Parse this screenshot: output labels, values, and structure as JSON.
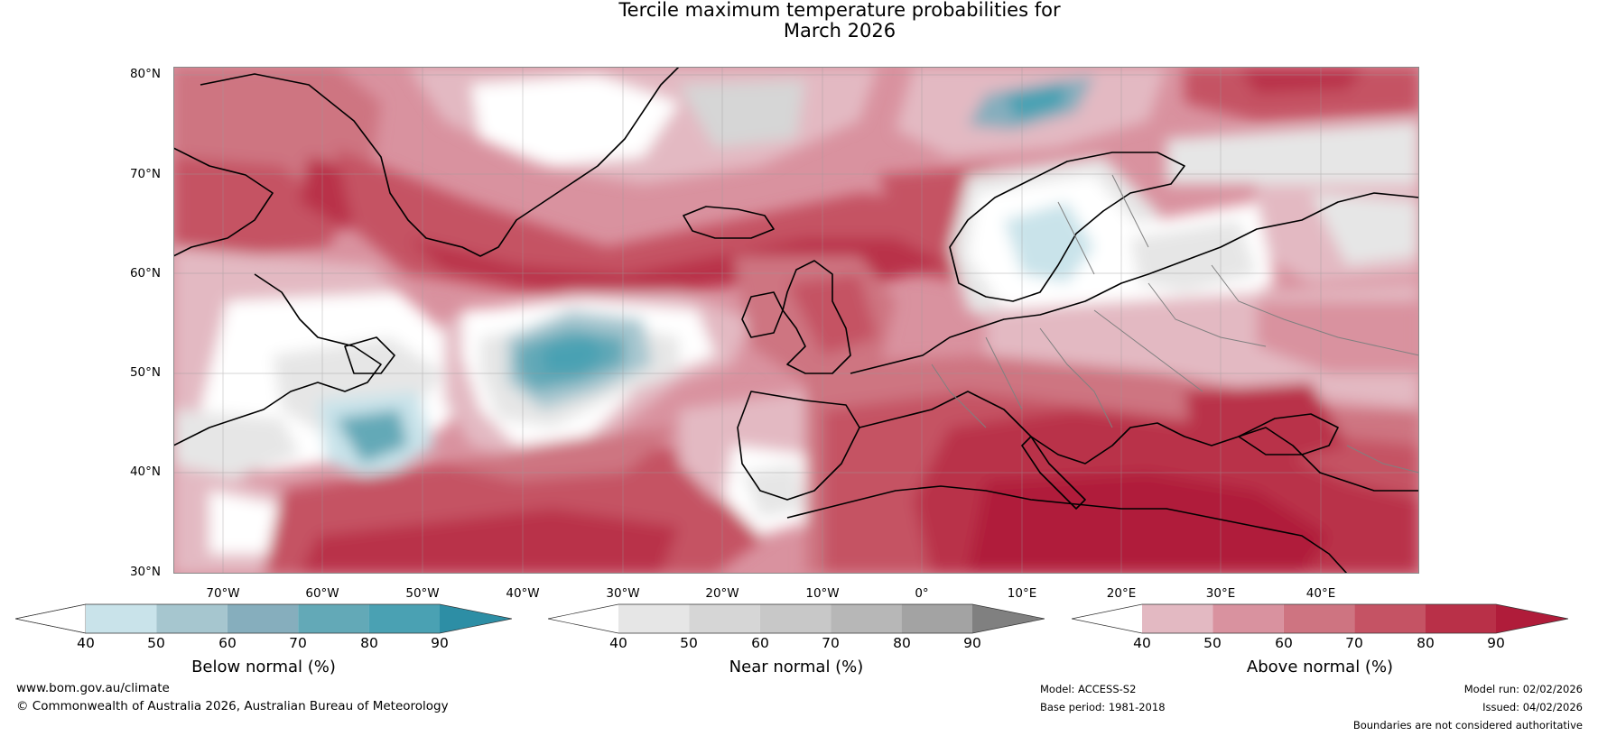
{
  "title": {
    "line1": "Tercile maximum temperature probabilities for",
    "line2": "March 2026"
  },
  "map": {
    "lat_labels": [
      "80°N",
      "70°N",
      "60°N",
      "50°N",
      "40°N",
      "30°N"
    ],
    "lon_labels": [
      "70°W",
      "60°W",
      "50°W",
      "40°W",
      "30°W",
      "20°W",
      "10°W",
      "0°",
      "10°E",
      "20°E",
      "30°E",
      "40°E"
    ],
    "extent": {
      "lon": [
        -75,
        50
      ],
      "lat": [
        30,
        81
      ]
    },
    "features": [
      {
        "name": "greenland-landmass"
      },
      {
        "name": "iceland-landmass"
      },
      {
        "name": "british-isles-landmass"
      },
      {
        "name": "scandinavia-landmass"
      },
      {
        "name": "europe-mainland-landmass"
      },
      {
        "name": "north-america-landmass"
      }
    ]
  },
  "colorbars": [
    {
      "name": "below-normal",
      "label": "Below normal (%)",
      "ticks": [
        "40",
        "50",
        "60",
        "70",
        "80",
        "90"
      ],
      "colors": [
        "#ffffff",
        "#c9e3ea",
        "#a6c6cf",
        "#86aebd",
        "#63a9b7",
        "#4aa1b3",
        "#2d8ea5"
      ]
    },
    {
      "name": "near-normal",
      "label": "Near normal (%)",
      "ticks": [
        "40",
        "50",
        "60",
        "70",
        "80",
        "90"
      ],
      "colors": [
        "#ffffff",
        "#e6e6e6",
        "#d6d6d6",
        "#c8c8c8",
        "#b7b7b7",
        "#a3a3a3",
        "#808080"
      ]
    },
    {
      "name": "above-normal",
      "label": "Above normal (%)",
      "ticks": [
        "40",
        "50",
        "60",
        "70",
        "80",
        "90"
      ],
      "colors": [
        "#ffffff",
        "#e3b9c2",
        "#d9929f",
        "#ce7481",
        "#c55364",
        "#b93048",
        "#b01c3a"
      ]
    }
  ],
  "footer": {
    "website": "www.bom.gov.au/climate",
    "copyright": "© Commonwealth of Australia 2026, Australian Bureau of Meteorology",
    "model": "Model: ACCESS-S2",
    "base_period": "Base period: 1981-2018",
    "model_run": "Model run: 02/02/2026",
    "issued": "Issued: 04/02/2026",
    "disclaimer": "Boundaries are not considered authoritative"
  }
}
